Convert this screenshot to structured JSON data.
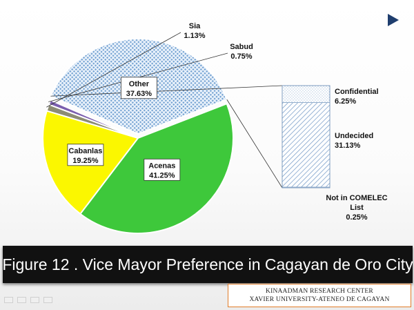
{
  "chart_data": {
    "type": "pie",
    "title": "",
    "slices": [
      {
        "label": "Sia",
        "value": 1.13,
        "value_label": "1.13%",
        "color": "#8c8c74"
      },
      {
        "label": "Sabud",
        "value": 0.75,
        "value_label": "0.75%",
        "color": "#7b5fae"
      },
      {
        "label": "Other",
        "value": 37.63,
        "value_label": "37.63%",
        "color": "#b9d1ea",
        "pattern": "dotted-grid"
      },
      {
        "label": "Acenas",
        "value": 41.25,
        "value_label": "41.25%",
        "color": "#3ec83b"
      },
      {
        "label": "Cabanlas",
        "value": 19.25,
        "value_label": "19.25%",
        "color": "#fbf700"
      }
    ],
    "breakdown": {
      "of": "Other",
      "type": "stacked-bar",
      "segments": [
        {
          "label": "Confidential",
          "value": 6.25,
          "value_label": "6.25%",
          "pattern": "dots"
        },
        {
          "label": "Undecided",
          "value": 31.13,
          "value_label": "31.13%",
          "pattern": "diagonal-lines"
        },
        {
          "label": "Not in COMELEC List",
          "value": 0.25,
          "value_label": "0.25%",
          "pattern": "none"
        }
      ]
    }
  },
  "caption": "Figure 12 . Vice Mayor Preference in Cagayan de Oro City",
  "footer": {
    "line1": "KINAADMAN RESEARCH CENTER",
    "line2": "XAVIER UNIVERSITY-ATENEO DE CAGAYAN"
  },
  "icons": {
    "play": "play-triangle-icon",
    "nav": [
      "slide-nav-icon",
      "pen-icon",
      "menu-icon",
      "next-icon"
    ]
  }
}
